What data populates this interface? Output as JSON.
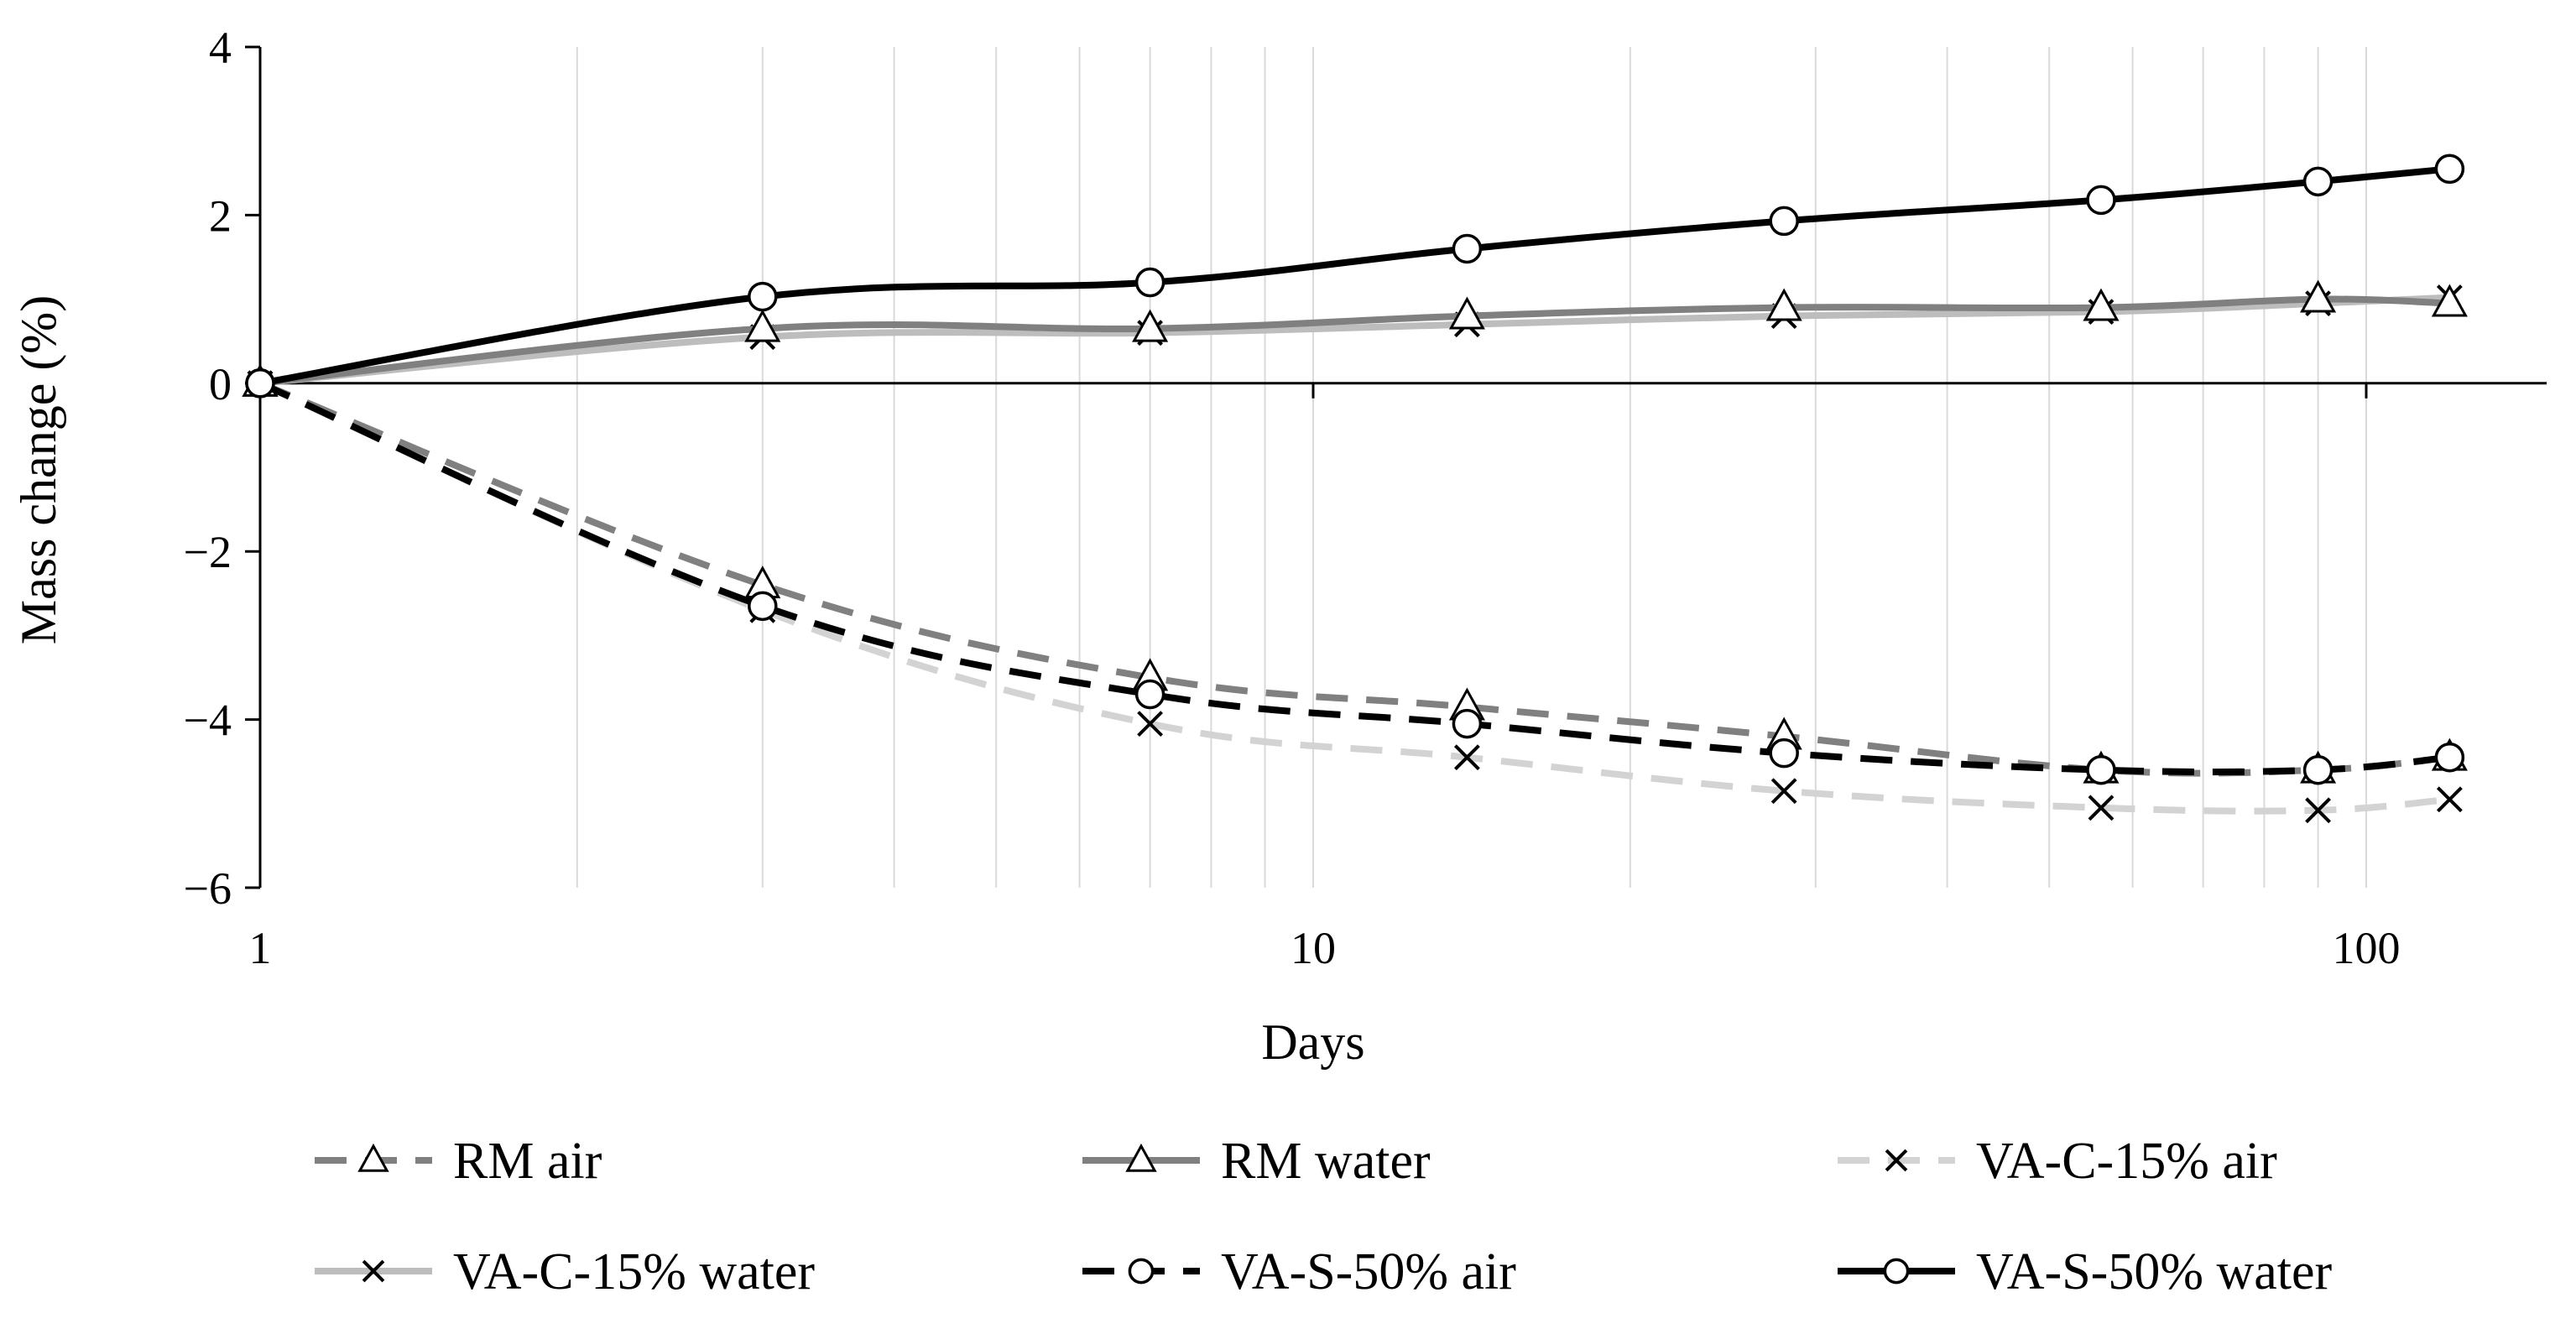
{
  "chart_data": {
    "type": "line",
    "title": "",
    "xlabel": "Days",
    "ylabel": "Mass change (%)",
    "xscale": "log",
    "xlim": [
      1,
      150
    ],
    "ylim": [
      -6,
      4
    ],
    "x_ticks": [
      {
        "value": 1,
        "label": "1"
      },
      {
        "value": 10,
        "label": "10"
      },
      {
        "value": 100,
        "label": "100"
      }
    ],
    "y_ticks": [
      {
        "value": 4,
        "label": "4"
      },
      {
        "value": 2,
        "label": "2"
      },
      {
        "value": 0,
        "label": "0"
      },
      {
        "value": -2,
        "label": "−2"
      },
      {
        "value": -4,
        "label": "−4"
      },
      {
        "value": -6,
        "label": "−6"
      }
    ],
    "grid": "vertical-log-minor",
    "legend_position": "bottom",
    "x": [
      1,
      3,
      7,
      14,
      28,
      56,
      90,
      120
    ],
    "series": [
      {
        "name": "RM air",
        "color": "#808080",
        "dash": "dashed",
        "marker": "triangle",
        "values": [
          0,
          -2.4,
          -3.5,
          -3.85,
          -4.2,
          -4.6,
          -4.6,
          -4.45
        ]
      },
      {
        "name": "RM water",
        "color": "#808080",
        "dash": "solid",
        "marker": "triangle",
        "values": [
          0,
          0.65,
          0.65,
          0.8,
          0.9,
          0.9,
          1.0,
          0.95
        ]
      },
      {
        "name": "VA-C-15% air",
        "color": "#d3d3d3",
        "dash": "dashed",
        "marker": "x",
        "values": [
          0,
          -2.7,
          -4.05,
          -4.45,
          -4.85,
          -5.05,
          -5.08,
          -4.95
        ]
      },
      {
        "name": "VA-C-15% water",
        "color": "#bdbdbd",
        "dash": "solid",
        "marker": "x",
        "values": [
          0,
          0.55,
          0.6,
          0.7,
          0.8,
          0.85,
          0.95,
          1.02
        ]
      },
      {
        "name": "VA-S-50% air",
        "color": "#000000",
        "dash": "dashed",
        "marker": "circle",
        "values": [
          0,
          -2.65,
          -3.7,
          -4.05,
          -4.4,
          -4.6,
          -4.6,
          -4.45
        ]
      },
      {
        "name": "VA-S-50% water",
        "color": "#000000",
        "dash": "solid",
        "marker": "circle",
        "values": [
          0,
          1.03,
          1.2,
          1.6,
          1.93,
          2.18,
          2.4,
          2.55
        ]
      }
    ]
  }
}
